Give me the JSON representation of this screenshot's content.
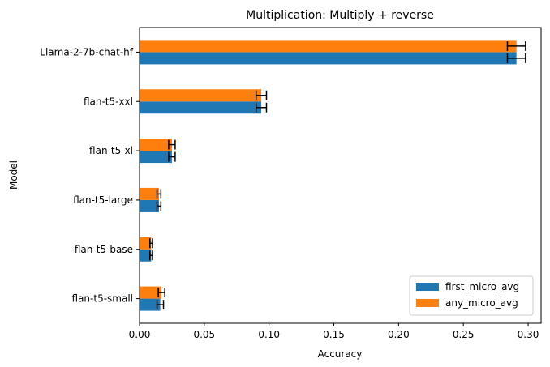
{
  "chart_data": {
    "type": "bar",
    "orientation": "horizontal",
    "title": "Multiplication: Multiply + reverse",
    "xlabel": "Accuracy",
    "ylabel": "Model",
    "xlim": [
      0,
      0.31
    ],
    "xticks": [
      0.0,
      0.05,
      0.1,
      0.15,
      0.2,
      0.25,
      0.3
    ],
    "xtick_labels": [
      "0.00",
      "0.05",
      "0.10",
      "0.15",
      "0.20",
      "0.25",
      "0.30"
    ],
    "categories": [
      "flan-t5-small",
      "flan-t5-base",
      "flan-t5-large",
      "flan-t5-xl",
      "flan-t5-xxl",
      "Llama-2-7b-chat-hf"
    ],
    "series": [
      {
        "name": "first_micro_avg",
        "color": "#1f77b4",
        "values": [
          0.016,
          0.009,
          0.015,
          0.025,
          0.094,
          0.291
        ],
        "errors": [
          0.0025,
          0.001,
          0.0015,
          0.0025,
          0.004,
          0.007
        ]
      },
      {
        "name": "any_micro_avg",
        "color": "#ff7f0e",
        "values": [
          0.017,
          0.009,
          0.015,
          0.025,
          0.094,
          0.291
        ],
        "errors": [
          0.0025,
          0.001,
          0.0015,
          0.0025,
          0.004,
          0.007
        ]
      }
    ],
    "legend_position": "lower-right",
    "grid": false
  }
}
